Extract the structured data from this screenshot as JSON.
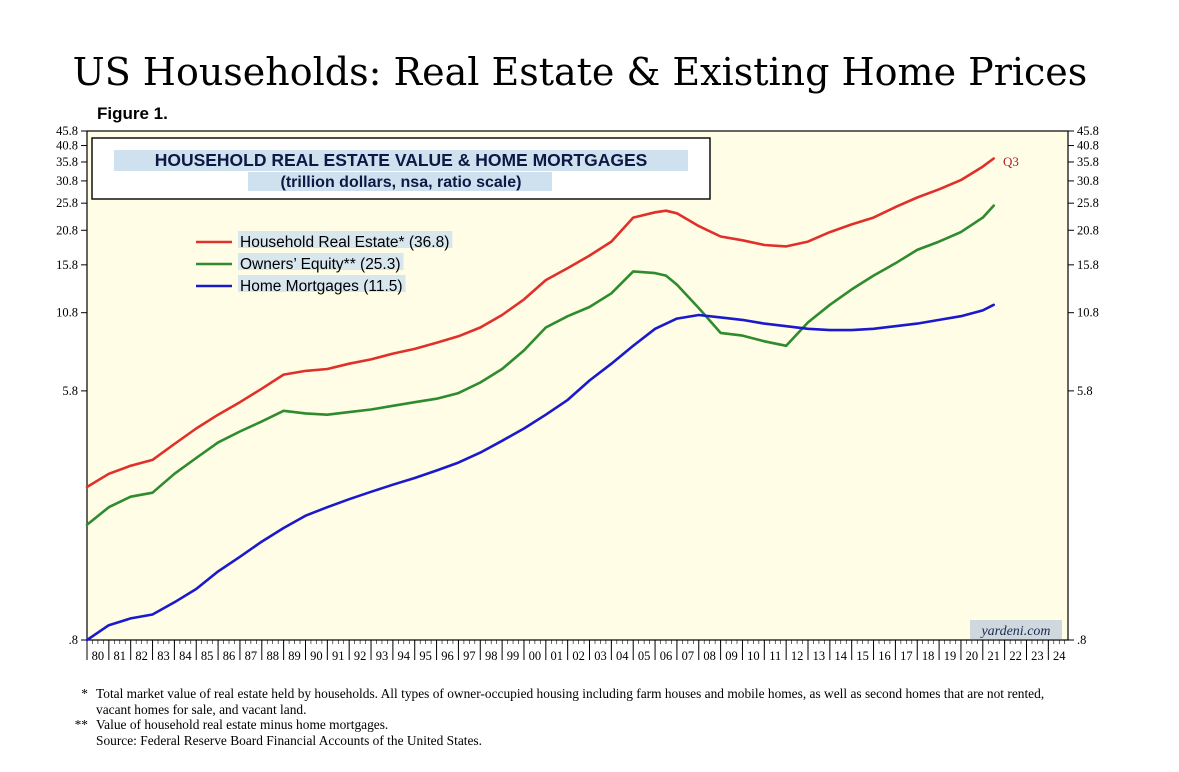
{
  "title": "US Households: Real Estate & Existing Home Prices",
  "figure_label": "Figure 1.",
  "chart_data": {
    "type": "line",
    "title": "HOUSEHOLD REAL ESTATE VALUE & HOME MORTGAGES",
    "subtitle": "(trillion dollars, nsa, ratio scale)",
    "y_scale": "log",
    "ylim": [
      0.8,
      45.8
    ],
    "y_ticks": [
      45.8,
      40.8,
      35.8,
      30.8,
      25.8,
      20.8,
      15.8,
      10.8,
      5.8,
      0.8
    ],
    "y_tick_labels": [
      "45.8",
      "40.8",
      "35.8",
      "30.8",
      "25.8",
      "20.8",
      "15.8",
      "10.8",
      "5.8",
      ".8"
    ],
    "xlim": [
      1980,
      2024.9
    ],
    "x_tick_labels": [
      "80",
      "81",
      "82",
      "83",
      "84",
      "85",
      "86",
      "87",
      "88",
      "89",
      "90",
      "91",
      "92",
      "93",
      "94",
      "95",
      "96",
      "97",
      "98",
      "99",
      "00",
      "01",
      "02",
      "03",
      "04",
      "05",
      "06",
      "07",
      "08",
      "09",
      "10",
      "11",
      "12",
      "13",
      "14",
      "15",
      "16",
      "17",
      "18",
      "19",
      "20",
      "21",
      "22",
      "23",
      "24"
    ],
    "grid": false,
    "legend_position": "top-left",
    "last_point_label": "Q3",
    "watermark": "yardeni.com",
    "colors": {
      "background": "#fffde6",
      "real_estate": "#e0302a",
      "equity": "#2e8b2e",
      "mortgages": "#1a1acc"
    },
    "series": [
      {
        "name": "Household Real Estate* (36.8)",
        "color": "#e0302a",
        "x": [
          1980.0,
          1981.0,
          1982.0,
          1983.0,
          1984.0,
          1985.0,
          1986.0,
          1987.0,
          1988.0,
          1989.0,
          1990.0,
          1991.0,
          1992.0,
          1993.0,
          1994.0,
          1995.0,
          1996.0,
          1997.0,
          1998.0,
          1999.0,
          2000.0,
          2001.0,
          2002.0,
          2003.0,
          2004.0,
          2005.0,
          2006.0,
          2006.5,
          2007.0,
          2008.0,
          2009.0,
          2010.0,
          2011.0,
          2012.0,
          2013.0,
          2014.0,
          2015.0,
          2016.0,
          2017.0,
          2018.0,
          2019.0,
          2020.0,
          2021.0,
          2021.5
        ],
        "values": [
          2.7,
          3.0,
          3.2,
          3.35,
          3.8,
          4.3,
          4.8,
          5.3,
          5.9,
          6.6,
          6.8,
          6.9,
          7.2,
          7.45,
          7.8,
          8.1,
          8.5,
          8.95,
          9.6,
          10.6,
          12.0,
          14.0,
          15.4,
          17.0,
          19.0,
          23.0,
          24.0,
          24.3,
          23.8,
          21.5,
          19.8,
          19.2,
          18.5,
          18.3,
          19.0,
          20.5,
          21.8,
          23.0,
          25.0,
          27.0,
          28.8,
          31.0,
          34.5,
          36.8
        ]
      },
      {
        "name": "Owners’ Equity** (25.3)",
        "color": "#2e8b2e",
        "x": [
          1980.0,
          1981.0,
          1982.0,
          1983.0,
          1984.0,
          1985.0,
          1986.0,
          1987.0,
          1988.0,
          1989.0,
          1990.0,
          1991.0,
          1992.0,
          1993.0,
          1994.0,
          1995.0,
          1996.0,
          1997.0,
          1998.0,
          1999.0,
          2000.0,
          2001.0,
          2002.0,
          2003.0,
          2004.0,
          2005.0,
          2006.0,
          2006.5,
          2007.0,
          2008.0,
          2009.0,
          2010.0,
          2011.0,
          2012.0,
          2013.0,
          2014.0,
          2015.0,
          2016.0,
          2017.0,
          2018.0,
          2019.0,
          2020.0,
          2021.0,
          2021.5
        ],
        "values": [
          2.0,
          2.3,
          2.5,
          2.58,
          3.0,
          3.4,
          3.85,
          4.2,
          4.55,
          4.95,
          4.85,
          4.8,
          4.9,
          5.0,
          5.15,
          5.3,
          5.45,
          5.7,
          6.2,
          6.9,
          8.0,
          9.6,
          10.5,
          11.3,
          12.6,
          15.0,
          14.8,
          14.5,
          13.5,
          11.2,
          9.2,
          9.0,
          8.6,
          8.3,
          10.0,
          11.5,
          13.0,
          14.5,
          16.0,
          17.8,
          19.0,
          20.5,
          23.0,
          25.3
        ]
      },
      {
        "name": "Home Mortgages (11.5)",
        "color": "#1a1acc",
        "x": [
          1980.0,
          1981.0,
          1982.0,
          1983.0,
          1984.0,
          1985.0,
          1986.0,
          1987.0,
          1988.0,
          1989.0,
          1990.0,
          1991.0,
          1992.0,
          1993.0,
          1994.0,
          1995.0,
          1996.0,
          1997.0,
          1998.0,
          1999.0,
          2000.0,
          2001.0,
          2002.0,
          2003.0,
          2004.0,
          2005.0,
          2006.0,
          2007.0,
          2008.0,
          2009.0,
          2010.0,
          2011.0,
          2012.0,
          2013.0,
          2014.0,
          2015.0,
          2016.0,
          2017.0,
          2018.0,
          2019.0,
          2020.0,
          2021.0,
          2021.5
        ],
        "values": [
          0.8,
          0.9,
          0.95,
          0.98,
          1.08,
          1.2,
          1.38,
          1.55,
          1.75,
          1.95,
          2.15,
          2.3,
          2.45,
          2.6,
          2.75,
          2.9,
          3.08,
          3.28,
          3.55,
          3.9,
          4.3,
          4.8,
          5.4,
          6.3,
          7.2,
          8.3,
          9.5,
          10.3,
          10.6,
          10.4,
          10.2,
          9.9,
          9.7,
          9.5,
          9.4,
          9.4,
          9.5,
          9.7,
          9.9,
          10.2,
          10.5,
          11.0,
          11.5
        ]
      }
    ]
  },
  "footnotes": [
    {
      "mark": "*",
      "text": "Total market value of real estate held by households. All types of owner-occupied housing including farm houses and mobile homes, as well as second homes that are not rented, vacant homes for sale, and vacant land."
    },
    {
      "mark": "**",
      "text": "Value of household real estate minus home mortgages."
    },
    {
      "mark": "",
      "text": "Source: Federal Reserve Board Financial Accounts of the United States."
    }
  ]
}
